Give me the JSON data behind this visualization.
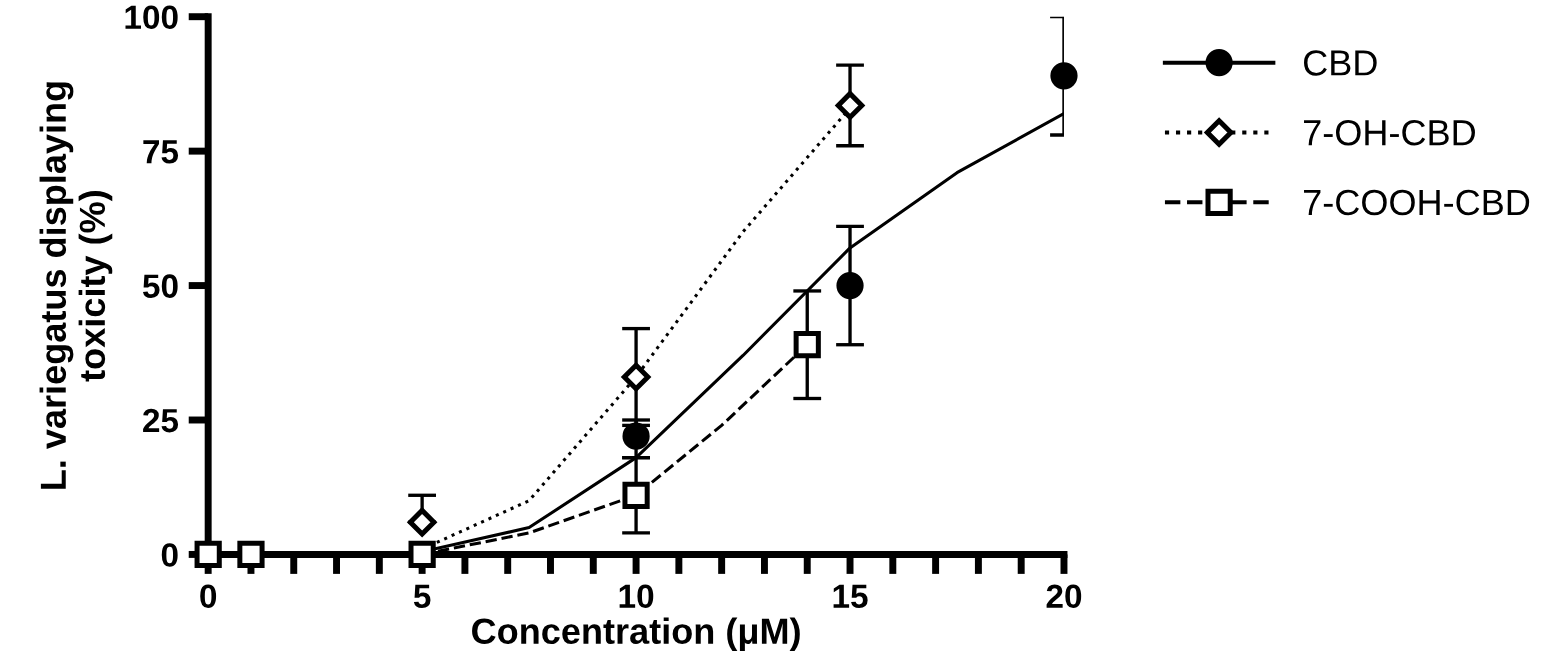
{
  "chart_data": {
    "type": "scatter",
    "xlabel": "Concentration (μM)",
    "ylabel": "L. variegatus displaying\ntoxicity (%)",
    "xlim": [
      0,
      20
    ],
    "ylim": [
      0,
      100
    ],
    "xticks": [
      0,
      {
        "value": 1,
        "label": null
      },
      {
        "value": 2,
        "label": null
      },
      {
        "value": 3,
        "label": null
      },
      {
        "value": 4,
        "label": null
      },
      5,
      {
        "value": 6,
        "label": null
      },
      {
        "value": 7,
        "label": null
      },
      {
        "value": 8,
        "label": null
      },
      {
        "value": 9,
        "label": null
      },
      10,
      {
        "value": 11,
        "label": null
      },
      {
        "value": 12,
        "label": null
      },
      {
        "value": 13,
        "label": null
      },
      {
        "value": 14,
        "label": null
      },
      15,
      {
        "value": 16,
        "label": null
      },
      {
        "value": 17,
        "label": null
      },
      {
        "value": 18,
        "label": null
      },
      {
        "value": 19,
        "label": null
      },
      20
    ],
    "yticks": [
      0,
      25,
      50,
      75,
      100
    ],
    "grid": false,
    "legend": "right",
    "series": [
      {
        "name": "CBD",
        "marker": "circle",
        "color": "#000000",
        "x": [
          10,
          15,
          20
        ],
        "values": [
          22,
          50,
          89
        ],
        "errors": [
          [
            18,
            25
          ],
          [
            39,
            61
          ],
          [
            78,
            100
          ]
        ]
      },
      {
        "name": "7-OH-CBD",
        "marker": "diamond",
        "color": "#000000",
        "x": [
          5,
          10,
          15
        ],
        "values": [
          6,
          33,
          83.5
        ],
        "errors": [
          [
            6,
            11
          ],
          [
            24,
            42
          ],
          [
            76,
            91
          ]
        ]
      },
      {
        "name": "7-COOH-CBD",
        "marker": "square",
        "color": "#000000",
        "x": [
          0,
          1,
          5,
          10,
          14
        ],
        "values": [
          0,
          0,
          0,
          11,
          39
        ],
        "errors": [
          null,
          null,
          null,
          [
            4,
            18
          ],
          [
            29,
            49
          ]
        ]
      },
      {
        "type": "line",
        "line_style": "solid",
        "color": "#000000",
        "x": [
          5,
          7.5,
          10,
          12.5,
          15,
          17.5,
          20
        ],
        "values": [
          0.5,
          5,
          18,
          37,
          57,
          71,
          82
        ]
      },
      {
        "type": "line",
        "line_style": "dotted",
        "color": "#000000",
        "x": [
          5,
          7.5,
          10,
          12.5,
          15
        ],
        "values": [
          1,
          10,
          33,
          60,
          83
        ]
      },
      {
        "type": "line",
        "line_style": "dashed",
        "color": "#000000",
        "x": [
          5,
          7.5,
          10,
          12,
          14
        ],
        "values": [
          0,
          4,
          11,
          24,
          39
        ]
      }
    ]
  }
}
